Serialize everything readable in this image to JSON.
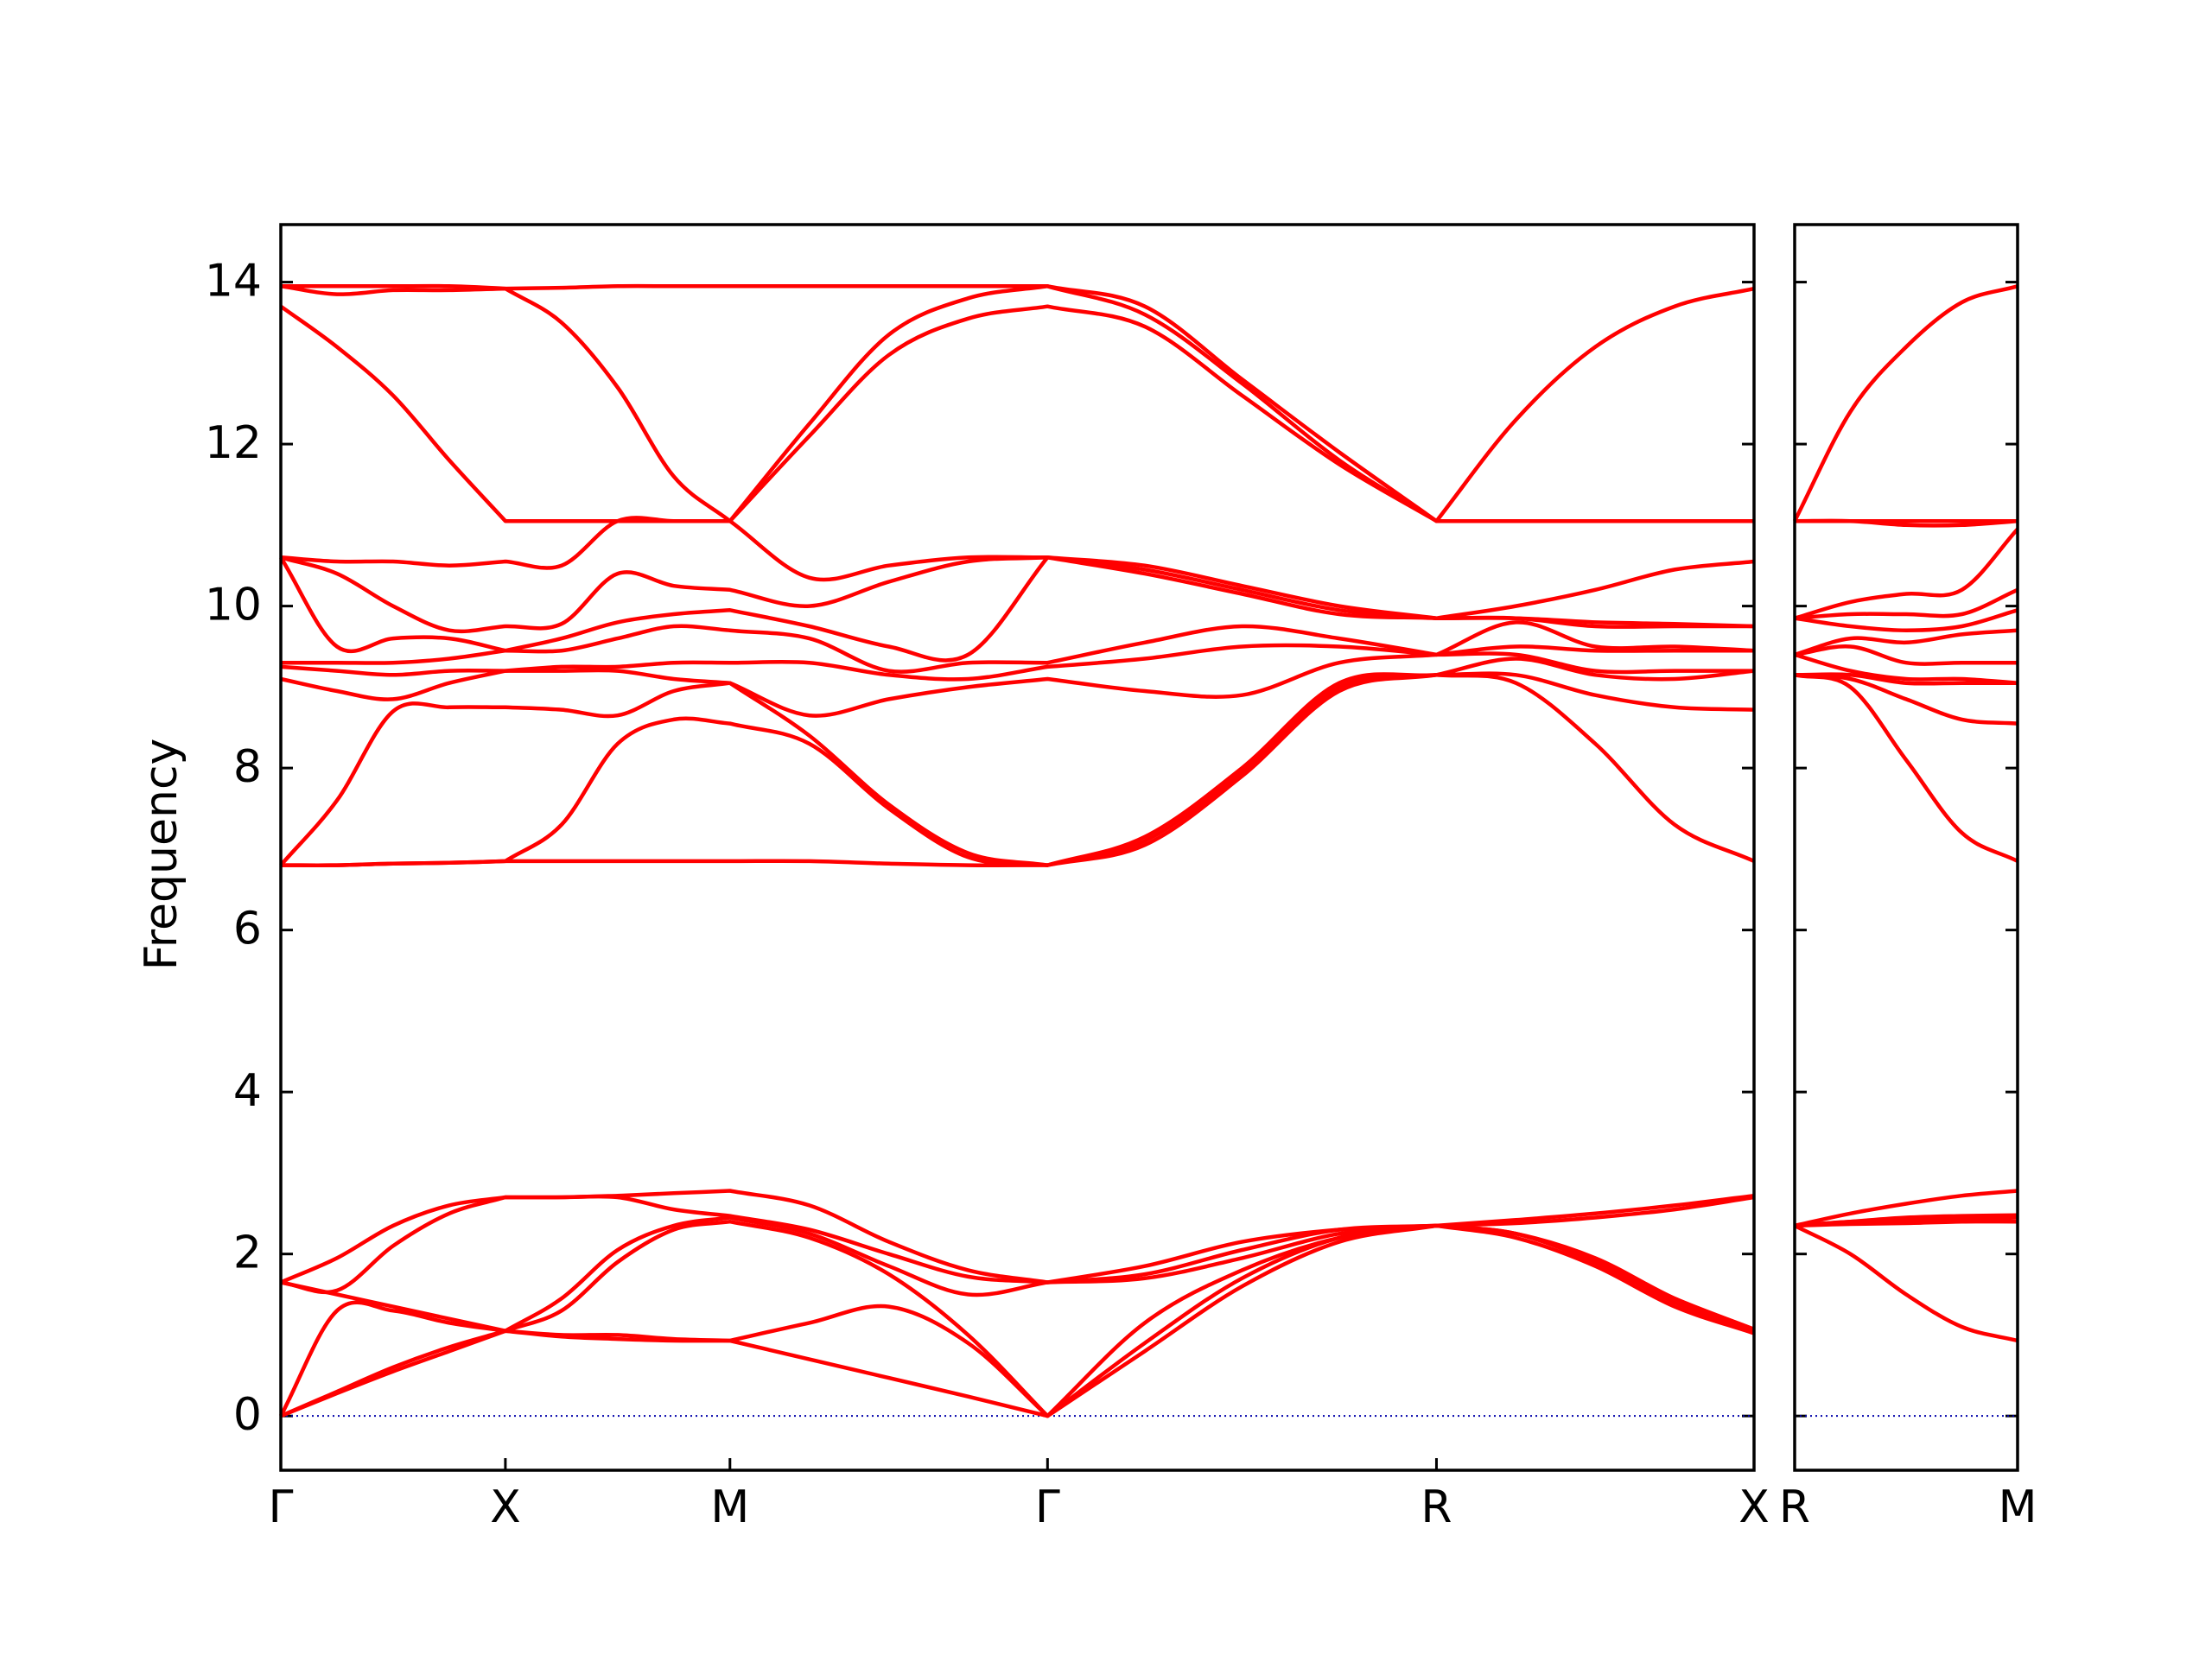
{
  "chart_data": [
    {
      "type": "line",
      "ylabel": "Frequency",
      "ylim": [
        -0.67,
        14.71
      ],
      "yticks": [
        0,
        2,
        4,
        6,
        8,
        10,
        12,
        14
      ],
      "show_ytick_labels": true,
      "xlim": [
        0,
        3.2802
      ],
      "xticks": [
        {
          "value": 0,
          "label": "Γ"
        },
        {
          "value": 0.5,
          "label": "X"
        },
        {
          "value": 1.0,
          "label": "M"
        },
        {
          "value": 1.7071,
          "label": "Γ"
        },
        {
          "value": 2.5731,
          "label": "R"
        },
        {
          "value": 3.2802,
          "label": "X"
        }
      ],
      "color": "#ff0000",
      "hline": 0,
      "hline_color": "#0000aa",
      "x": [
        0,
        0.125,
        0.25,
        0.375,
        0.5,
        0.625,
        0.75,
        0.875,
        1.0,
        1.1768,
        1.3536,
        1.5303,
        1.7071,
        1.9236,
        2.1401,
        2.3566,
        2.5731,
        2.7499,
        2.9267,
        3.1034,
        3.2802
      ],
      "values": [
        [
          0,
          0,
          0,
          1.65,
          1.65,
          1.65,
          6.8,
          6.8,
          6.8,
          9.1,
          9.25,
          9.3,
          10.6,
          10.6,
          10.6,
          13.7,
          13.95,
          13.95
        ],
        [
          0.28,
          0.3,
          1.3,
          1.5,
          1.55,
          1.95,
          6.8,
          6.8,
          7.6,
          8.95,
          9.2,
          9.3,
          9.5,
          10.4,
          10.55,
          13.2,
          13.85,
          13.95
        ],
        [
          0.55,
          0.6,
          1.3,
          1.35,
          2.1,
          2.35,
          6.82,
          6.82,
          8.7,
          8.85,
          9.15,
          9.3,
          9.6,
          10.0,
          10.55,
          12.6,
          13.9,
          13.95
        ],
        [
          0.8,
          0.85,
          1.15,
          1.2,
          2.5,
          2.6,
          6.83,
          6.83,
          8.75,
          9.05,
          9.2,
          9.35,
          9.6,
          9.7,
          10.5,
          11.8,
          13.9,
          13.95
        ],
        [
          1.05,
          1.05,
          1.05,
          1.05,
          2.7,
          2.7,
          6.85,
          6.85,
          8.75,
          9.2,
          9.2,
          9.45,
          9.45,
          9.75,
          10.55,
          11.05,
          13.92,
          13.92
        ],
        [
          0.98,
          1.0,
          1.3,
          1.45,
          2.7,
          2.7,
          6.85,
          7.3,
          8.72,
          9.2,
          9.25,
          9.45,
          9.6,
          9.78,
          10.5,
          11.05,
          13.5,
          13.93
        ],
        [
          0.95,
          1.0,
          1.9,
          2.05,
          2.7,
          2.72,
          6.85,
          8.3,
          8.65,
          9.2,
          9.25,
          9.6,
          9.8,
          10.4,
          11.05,
          11.05,
          12.7,
          13.95
        ],
        [
          0.93,
          0.95,
          2.3,
          2.35,
          2.55,
          2.75,
          6.85,
          8.6,
          8.95,
          9.1,
          9.3,
          9.75,
          9.9,
          10.25,
          11.05,
          11.05,
          11.6,
          13.95
        ],
        [
          0.93,
          0.93,
          2.4,
          2.45,
          2.47,
          2.78,
          6.85,
          8.55,
          9.05,
          9.05,
          9.3,
          9.7,
          9.95,
          10.2,
          11.05,
          11.05,
          11.05,
          13.95
        ],
        [
          0.7,
          1.15,
          2.2,
          2.25,
          2.3,
          2.6,
          6.85,
          8.3,
          8.4,
          8.65,
          9.3,
          9.6,
          9.75,
          10.0,
          10.35,
          12.1,
          12.25,
          13.95
        ],
        [
          0.47,
          1.35,
          1.75,
          1.85,
          2.0,
          2.15,
          6.82,
          7.5,
          7.55,
          8.85,
          9.15,
          9.2,
          9.5,
          10.3,
          10.5,
          13.1,
          13.35,
          13.95
        ],
        [
          0.24,
          0.9,
          1.0,
          1.5,
          1.72,
          1.8,
          6.8,
          6.9,
          6.95,
          9.0,
          9.1,
          9.3,
          9.4,
          10.55,
          10.6,
          13.55,
          13.8,
          13.95
        ],
        [
          0,
          0,
          0,
          1.65,
          1.65,
          1.65,
          6.8,
          6.8,
          6.8,
          9.1,
          9.25,
          9.3,
          10.6,
          10.6,
          10.6,
          13.7,
          13.95,
          13.95
        ],
        [
          0.8,
          0.9,
          1.15,
          1.7,
          1.75,
          1.85,
          7.05,
          7.1,
          7.15,
          8.95,
          9.35,
          9.55,
          10.4,
          10.45,
          10.5,
          13.45,
          13.6,
          13.7
        ],
        [
          1.6,
          1.7,
          1.8,
          1.95,
          2.05,
          2.15,
          7.9,
          7.95,
          8.0,
          8.9,
          9.5,
          9.75,
          10.15,
          10.2,
          10.25,
          12.6,
          12.75,
          12.8
        ],
        [
          2.15,
          2.2,
          2.2,
          2.25,
          2.3,
          2.3,
          8.95,
          9.0,
          9.05,
          9.3,
          9.5,
          9.6,
          9.9,
          9.95,
          10.0,
          11.75,
          11.8,
          11.9
        ],
        [
          2.35,
          2.35,
          2.35,
          2.35,
          2.35,
          2.35,
          9.15,
          9.15,
          9.15,
          9.4,
          9.4,
          9.4,
          9.85,
          9.85,
          9.85,
          11.05,
          11.05,
          11.05
        ],
        [
          2.2,
          2.25,
          2.25,
          2.25,
          2.38,
          2.42,
          9.05,
          9.15,
          9.35,
          9.4,
          9.5,
          9.8,
          9.85,
          9.85,
          10.0,
          11.05,
          11.05,
          12.3
        ],
        [
          1.85,
          1.9,
          1.9,
          1.95,
          2.45,
          2.5,
          8.3,
          8.9,
          9.15,
          9.2,
          9.45,
          9.5,
          9.75,
          9.8,
          10.2,
          11.05,
          11.05,
          13.2
        ],
        [
          1.35,
          1.4,
          1.45,
          1.45,
          2.55,
          2.6,
          7.3,
          8.75,
          9.1,
          9.2,
          9.45,
          9.5,
          9.75,
          9.78,
          10.45,
          11.05,
          11.05,
          13.7
        ],
        [
          1.02,
          1.05,
          1.07,
          1.07,
          2.7,
          2.72,
          6.85,
          8.72,
          9.2,
          9.2,
          9.45,
          9.45,
          9.75,
          9.75,
          10.55,
          11.05,
          11.05,
          13.92
        ]
      ]
    },
    {
      "type": "line",
      "ylim": [
        -0.67,
        14.71
      ],
      "yticks": [
        0,
        2,
        4,
        6,
        8,
        10,
        12,
        14
      ],
      "show_ytick_labels": false,
      "xlim": [
        0,
        0.5
      ],
      "xticks": [
        {
          "value": 0,
          "label": "R"
        },
        {
          "value": 0.5,
          "label": "M"
        }
      ],
      "color": "#ff0000",
      "hline": 0,
      "hline_color": "#0000aa",
      "x": [
        0,
        0.125,
        0.25,
        0.375,
        0.5
      ],
      "values": [
        [
          2.35,
          2.35,
          2.35,
          2.35,
          2.35,
          2.35,
          9.15,
          9.15,
          9.15,
          9.4,
          9.4,
          9.4,
          9.85,
          9.85,
          9.85,
          11.05,
          11.05,
          11.05
        ],
        [
          2.0,
          2.37,
          2.38,
          2.4,
          2.4,
          2.5,
          9.0,
          9.1,
          9.15,
          9.2,
          9.5,
          9.6,
          9.75,
          9.9,
          10.05,
          11.05,
          11.05,
          12.4
        ],
        [
          1.5,
          2.38,
          2.4,
          2.42,
          2.45,
          2.62,
          8.1,
          8.85,
          9.05,
          9.1,
          9.3,
          9.55,
          9.7,
          9.9,
          10.15,
          11.0,
          11.05,
          13.2
        ],
        [
          1.1,
          2.4,
          2.43,
          2.45,
          2.47,
          2.72,
          7.2,
          8.6,
          9.05,
          9.1,
          9.3,
          9.65,
          9.75,
          9.9,
          10.2,
          11.0,
          11.05,
          13.75
        ],
        [
          0.93,
          2.4,
          2.45,
          2.47,
          2.48,
          2.78,
          6.85,
          8.55,
          9.05,
          9.05,
          9.3,
          9.7,
          9.95,
          10.2,
          10.95,
          11.05,
          11.05,
          13.95
        ]
      ]
    }
  ]
}
